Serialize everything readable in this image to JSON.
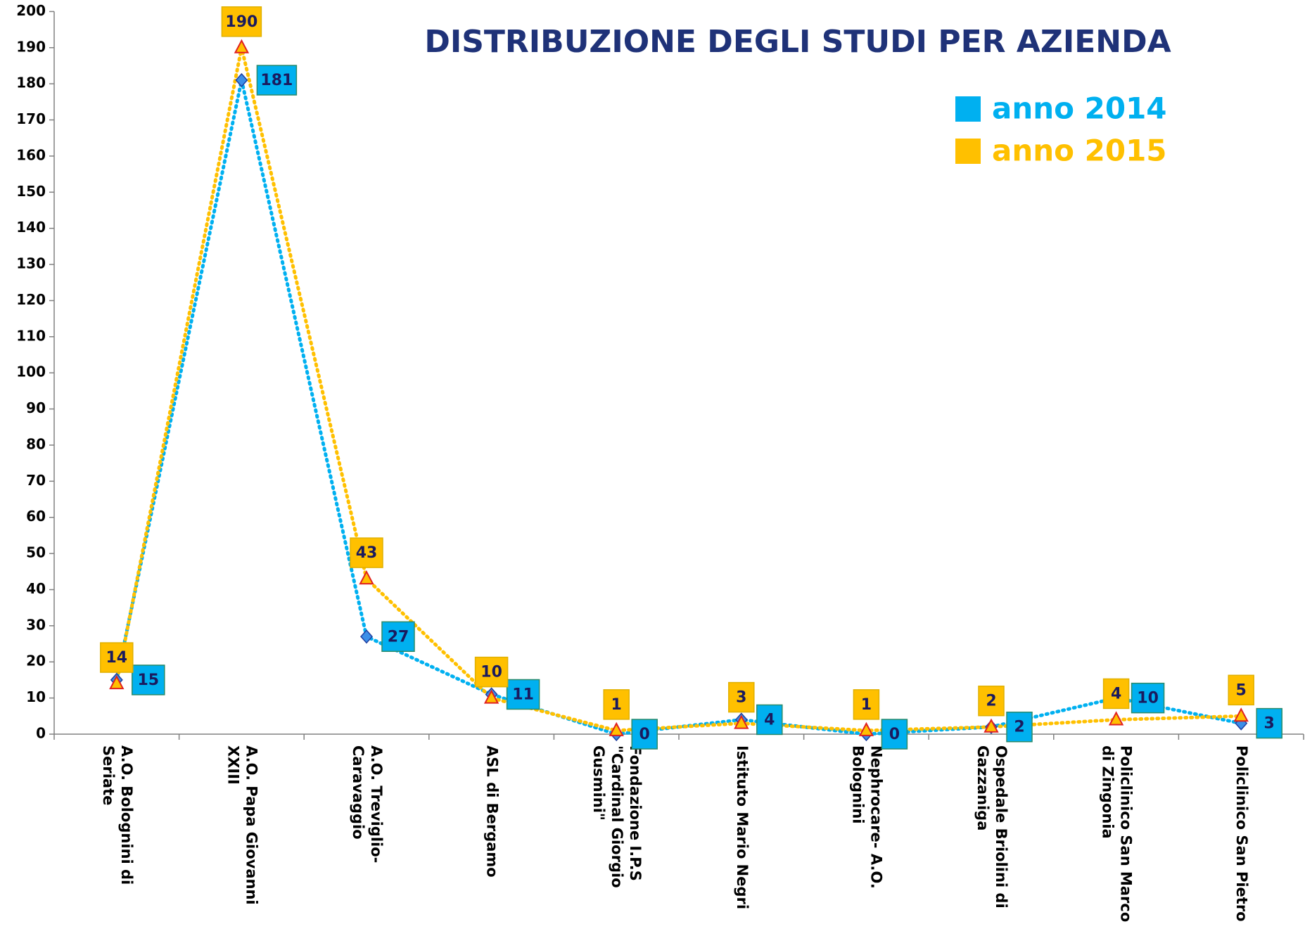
{
  "chart_data": {
    "type": "line",
    "title": "DISTRIBUZIONE DEGLI STUDI PER AZIENDA",
    "categories": [
      [
        "A.O. Bolognini di",
        "Seriate"
      ],
      [
        "A.O. Papa Giovanni",
        "XXIII"
      ],
      [
        "A.O. Treviglio-",
        "Caravaggio"
      ],
      [
        "ASL di Bergamo"
      ],
      [
        "Fondazione I.P.S",
        "\"Cardinal Giorgio",
        "Gusmini\""
      ],
      [
        "Istituto Mario Negri"
      ],
      [
        "Nephrocare- A.O.",
        "Bolognini"
      ],
      [
        "Ospedale Briolini di",
        "Gazzaniga"
      ],
      [
        "Policlinico San Marco",
        "di Zingonia"
      ],
      [
        "Policlinico San Pietro"
      ]
    ],
    "series": [
      {
        "name": "anno 2014",
        "color": "#00b0f0",
        "values": [
          15,
          181,
          27,
          11,
          0,
          4,
          0,
          2,
          10,
          3
        ]
      },
      {
        "name": "anno 2015",
        "color": "#ffc000",
        "values": [
          14,
          190,
          43,
          10,
          1,
          3,
          1,
          2,
          4,
          5
        ]
      }
    ],
    "ylim": [
      0,
      200
    ],
    "yticks": [
      0,
      10,
      20,
      30,
      40,
      50,
      60,
      70,
      80,
      90,
      100,
      110,
      120,
      130,
      140,
      150,
      160,
      170,
      180,
      190,
      200
    ],
    "grid": false,
    "legend": "upper right"
  }
}
